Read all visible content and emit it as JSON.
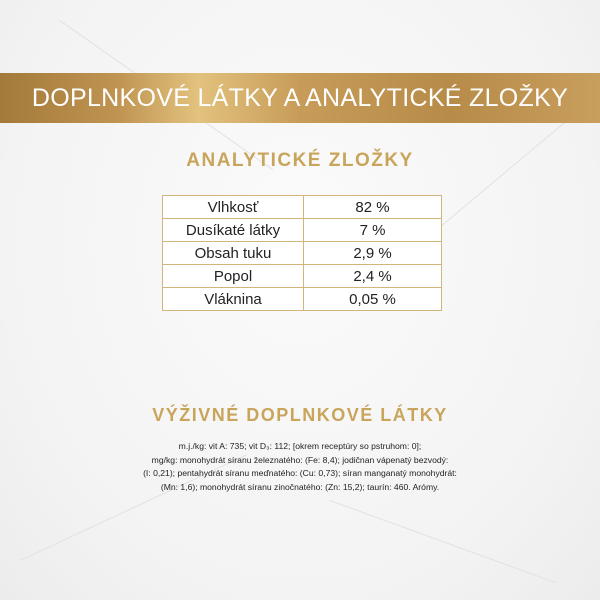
{
  "banner": {
    "title": "DOPLNKOVÉ LÁTKY A ANALYTICKÉ ZLOŽKY"
  },
  "analytical": {
    "heading": "ANALYTICKÉ ZLOŽKY",
    "rows": [
      {
        "label": "Vlhkosť",
        "value": "82 %"
      },
      {
        "label": "Dusíkaté látky",
        "value": "7 %"
      },
      {
        "label": "Obsah tuku",
        "value": "2,9 %"
      },
      {
        "label": "Popol",
        "value": "2,4 %"
      },
      {
        "label": "Vláknina",
        "value": "0,05 %"
      }
    ]
  },
  "additives": {
    "heading": "VÝŽIVNÉ DOPLNKOVÉ LÁTKY",
    "lines": [
      "m.j./kg: vit A: 735; vit D₃: 112; [okrem receptúry so pstruhom: 0];",
      "mg/kg: monohydrát síranu železnatého: (Fe: 8,4); jodičnan vápenatý bezvodý:",
      "(I: 0,21); pentahydrát síranu meďnatého: (Cu: 0,73); síran manganatý monohydrát:",
      "(Mn: 1,6); monohydrát síranu zinočnatého: (Zn: 15,2); taurín: 460. Arómy."
    ]
  },
  "colors": {
    "gold": "#c9a55c",
    "banner": "#b78b48"
  }
}
